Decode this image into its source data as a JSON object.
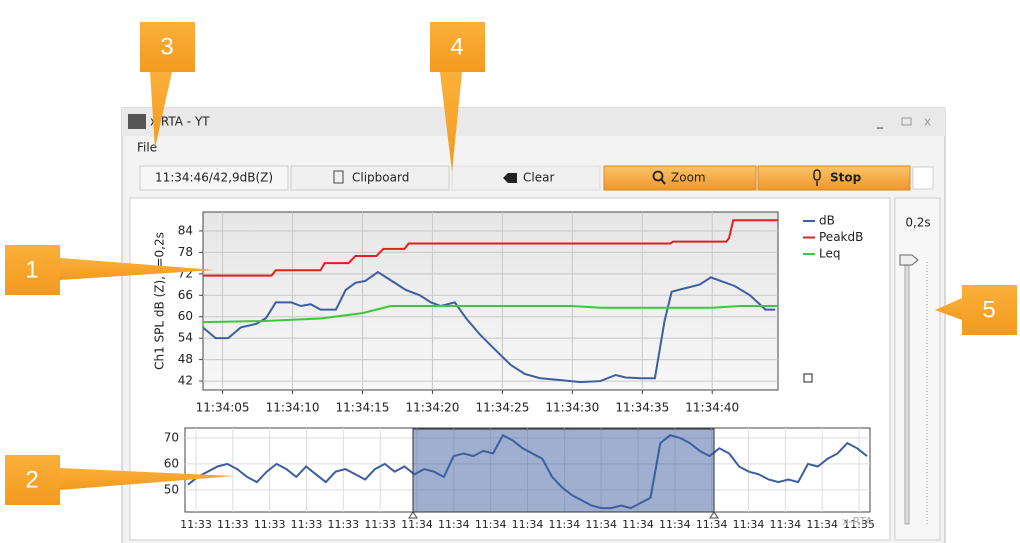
{
  "window": {
    "title": "x RTA - YT",
    "menu": [
      "File"
    ]
  },
  "toolbar": {
    "readout": "11:34:46/42,9dB(Z)",
    "buttons": [
      "Clipboard",
      "Clear",
      "Zoom",
      "Stop"
    ]
  },
  "chart_data": [
    {
      "type": "line",
      "y_label": "Ch1 SPL dB (Z), t=0,2s",
      "xlim": [
        3.6,
        44.7
      ],
      "ylim": [
        39.5,
        89.3
      ],
      "xticks": [
        {
          "value": 5,
          "label": "11:34:05"
        },
        {
          "value": 10,
          "label": "11:34:10"
        },
        {
          "value": 15,
          "label": "11:34:15"
        },
        {
          "value": 20,
          "label": "11:34:20"
        },
        {
          "value": 25,
          "label": "11:34:25"
        },
        {
          "value": 30,
          "label": "11:34:30"
        },
        {
          "value": 35,
          "label": "11:34:35"
        },
        {
          "value": 40,
          "label": "11:34:40"
        }
      ],
      "yticks": [
        42,
        48,
        54,
        60,
        66,
        72,
        78,
        84
      ],
      "grid": true,
      "legend": "top-right",
      "series": [
        {
          "name": "dB",
          "color": "#3d5fa0",
          "x": [
            3.6,
            4.5,
            5.4,
            6.3,
            7.4,
            8.1,
            8.8,
            9.9,
            10.6,
            11.3,
            12.0,
            13.1,
            13.8,
            14.5,
            15.2,
            16.1,
            17.1,
            18.1,
            19.1,
            19.9,
            20.6,
            21.6,
            22.4,
            23.4,
            24.5,
            25.6,
            26.6,
            27.7,
            29.1,
            30.6,
            32.0,
            33.1,
            33.8,
            34.9,
            35.9,
            36.6,
            37.1,
            38.1,
            39.1,
            39.9,
            40.6,
            41.6,
            42.7,
            43.8,
            44.5
          ],
          "values": [
            57,
            54,
            54,
            57,
            58,
            59.6,
            64,
            64,
            63,
            63.5,
            62,
            62,
            67.5,
            69.5,
            70,
            72.5,
            70,
            67.5,
            66,
            64,
            63,
            64,
            59.6,
            55,
            50.7,
            46.5,
            44,
            42.8,
            42.3,
            41.7,
            42,
            43.7,
            43,
            42.8,
            42.8,
            59,
            67,
            68,
            69,
            71,
            70,
            68.6,
            66,
            62,
            62
          ]
        },
        {
          "name": "PeakdB",
          "color": "#e02020",
          "x": [
            3.6,
            8.5,
            8.8,
            12.0,
            12.3,
            14.0,
            14.5,
            16.0,
            16.5,
            18.0,
            18.3,
            30.0,
            37.0,
            37.2,
            41.0,
            41.2,
            41.5,
            44.7
          ],
          "values": [
            71.5,
            71.5,
            73,
            73,
            75,
            75,
            77,
            77,
            79,
            79,
            80.5,
            80.5,
            80.5,
            81,
            81,
            82,
            87,
            87
          ]
        },
        {
          "name": "Leq",
          "color": "#3cc83c",
          "x": [
            3.6,
            8.0,
            12.0,
            15.0,
            17.0,
            30.0,
            32.0,
            40.0,
            42.0,
            44.7
          ],
          "values": [
            58.5,
            58.8,
            59.5,
            61,
            63,
            63,
            62.5,
            62.5,
            63,
            63
          ]
        }
      ]
    },
    {
      "type": "line",
      "ylim": [
        41.5,
        73.8
      ],
      "yticks": [
        50,
        60,
        70
      ],
      "grid": true,
      "xticks": [
        "11:33",
        "11:33",
        "11:33",
        "11:33",
        "11:33",
        "11:33",
        "11:34",
        "11:34",
        "11:34",
        "11:34",
        "11:34",
        "11:34",
        "11:34",
        "11:34",
        "11:34",
        "11:34",
        "11:34",
        "11:34",
        "11:35"
      ],
      "color": "#3d5fa0",
      "values": [
        52,
        55,
        57,
        59,
        60,
        58,
        55,
        53,
        57,
        60,
        58,
        55,
        59,
        56,
        53,
        57,
        58,
        56,
        54,
        58,
        60,
        57,
        59,
        56,
        58,
        57,
        55,
        63,
        64,
        63,
        65,
        64,
        71,
        69,
        66,
        64,
        62,
        55,
        51,
        48,
        46,
        44,
        43,
        43,
        44,
        43,
        45,
        47,
        68,
        71,
        70,
        68,
        65,
        63,
        66,
        64,
        59,
        57,
        56,
        54,
        53,
        54,
        53,
        60,
        59,
        62,
        64,
        68,
        66,
        63
      ]
    }
  ],
  "slider": {
    "label": "0,2s"
  },
  "watermark": "x-RTA",
  "callouts": [
    "1",
    "2",
    "3",
    "4",
    "5"
  ]
}
